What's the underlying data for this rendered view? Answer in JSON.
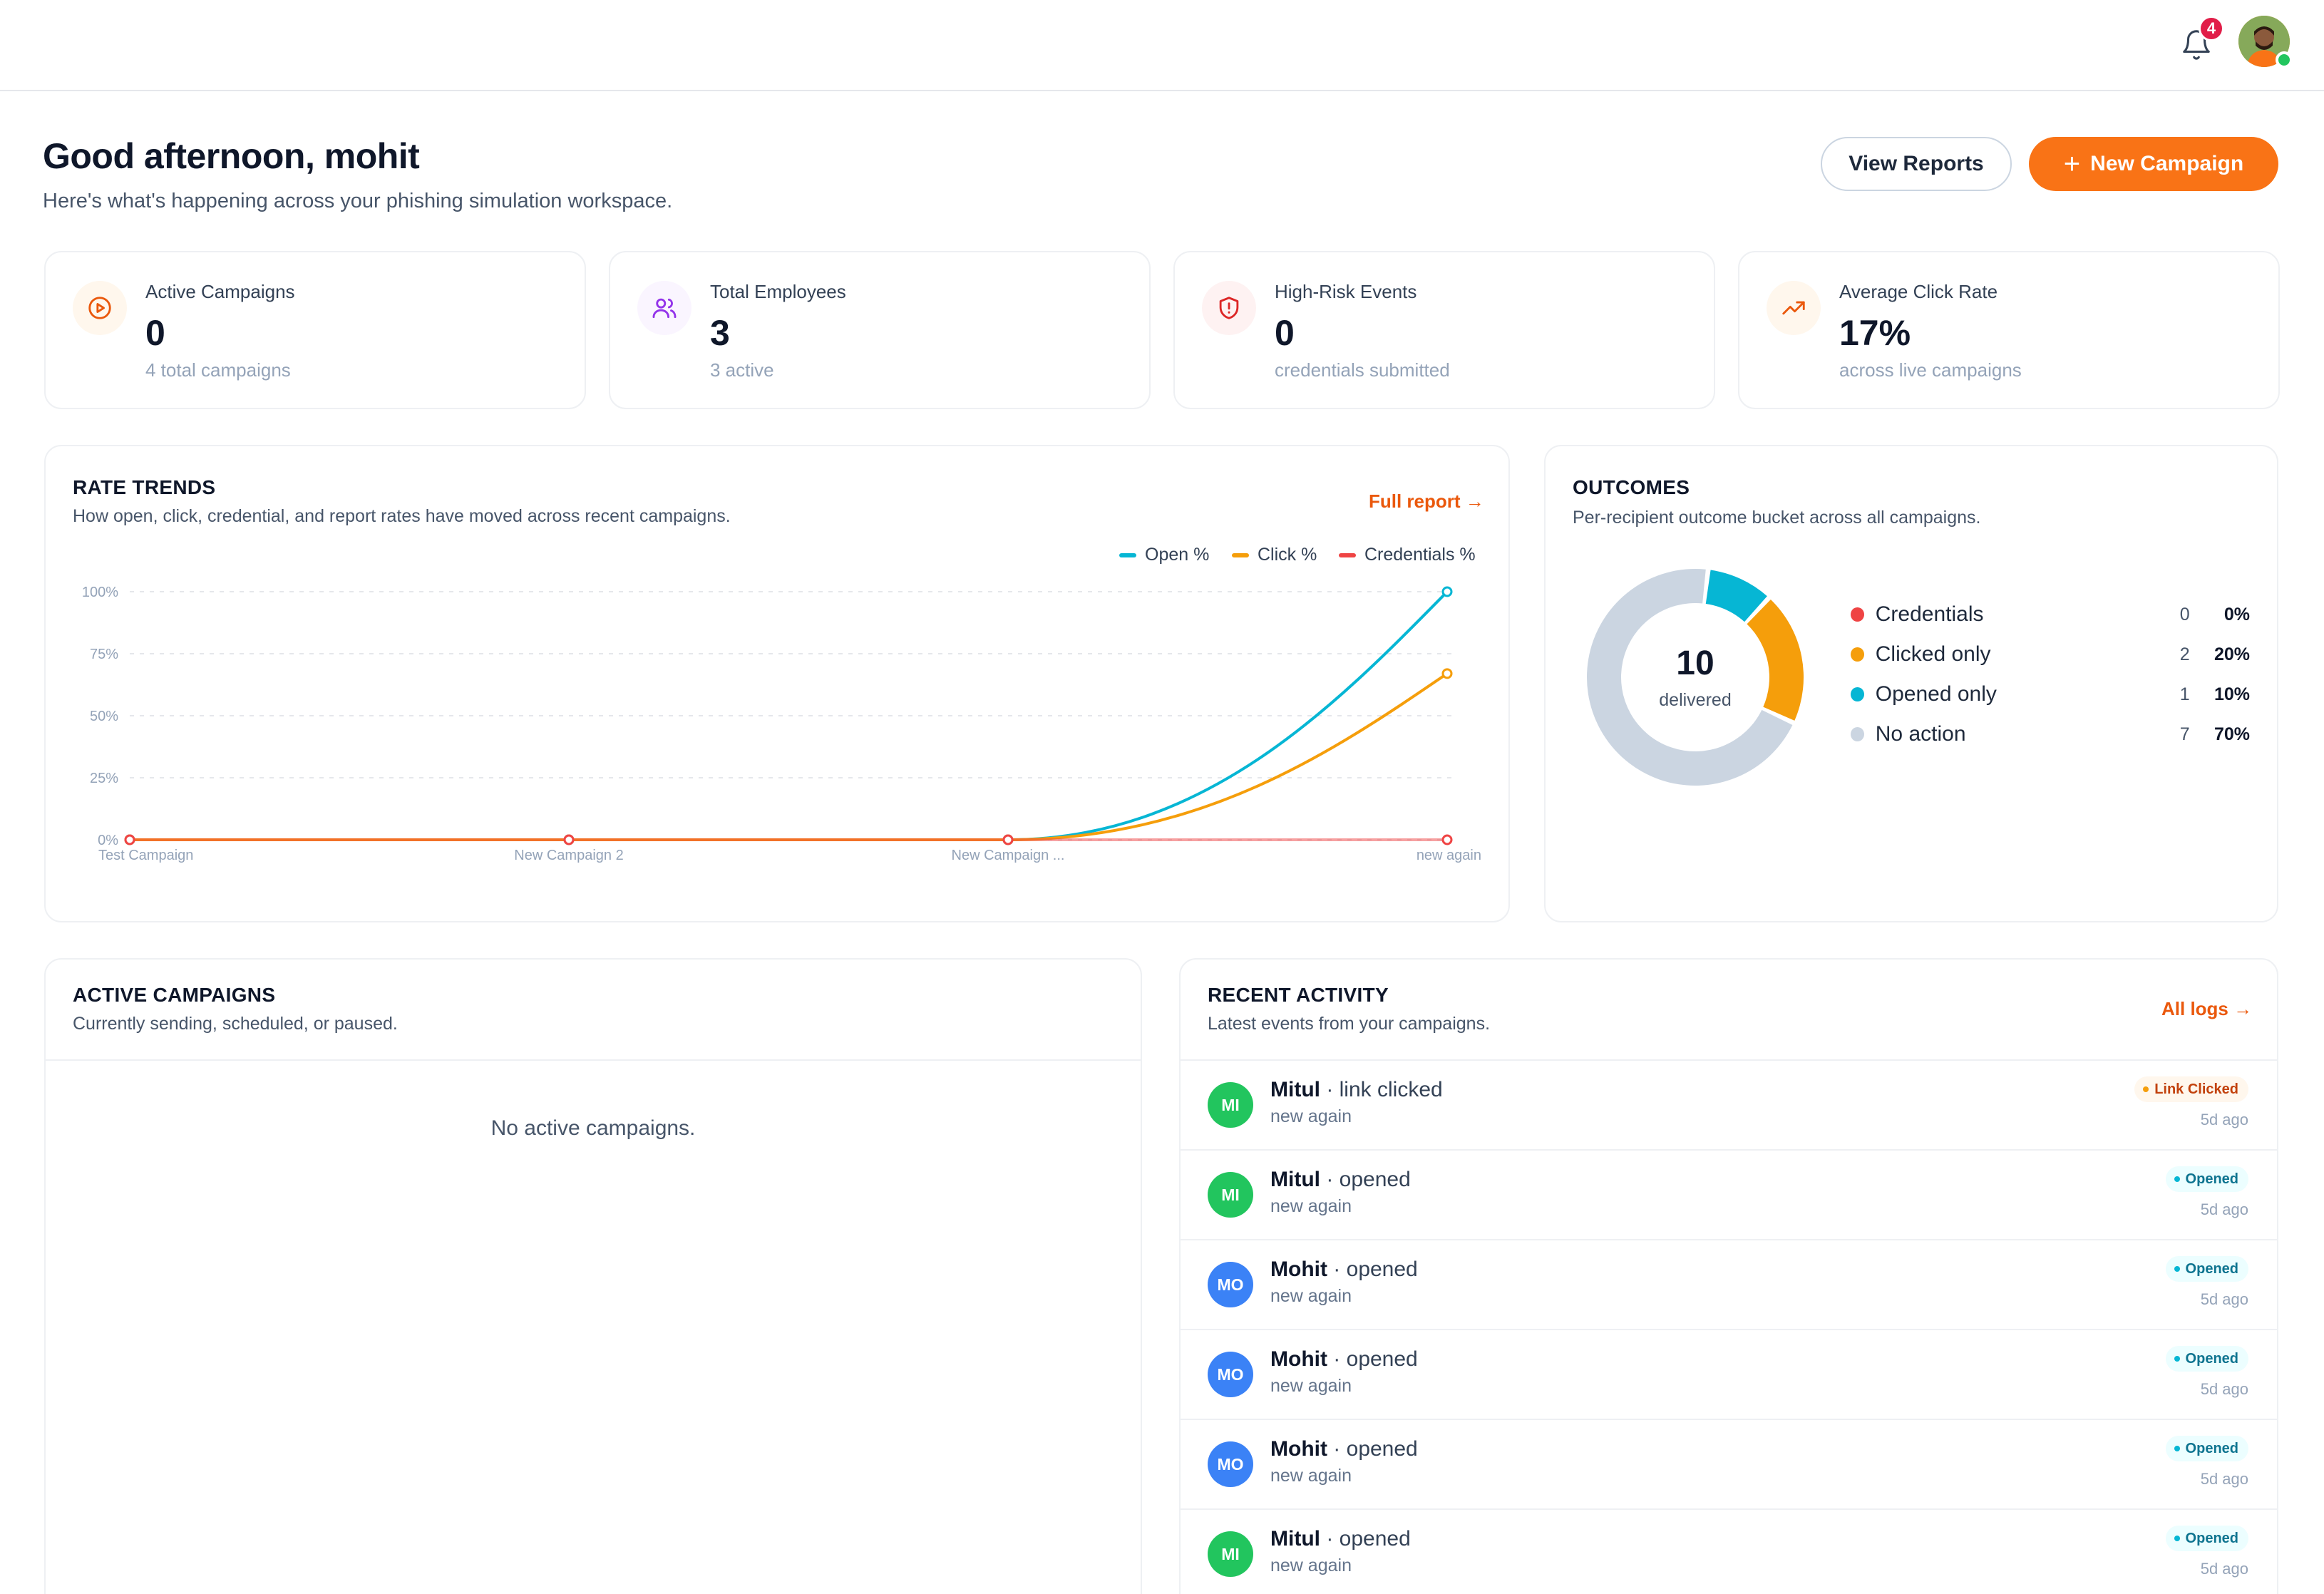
{
  "topbar": {
    "notification_count": "4"
  },
  "header": {
    "greeting": "Good afternoon, mohit",
    "subtitle": "Here's what's happening across your phishing simulation workspace.",
    "view_reports_label": "View Reports",
    "new_campaign_label": "New Campaign"
  },
  "stats": [
    {
      "label": "Active Campaigns",
      "value": "0",
      "sub": "4 total campaigns",
      "icon": "play-circle-icon",
      "accent": "#ea580c"
    },
    {
      "label": "Total Employees",
      "value": "3",
      "sub": "3 active",
      "icon": "users-icon",
      "accent": "#9333ea"
    },
    {
      "label": "High-Risk Events",
      "value": "0",
      "sub": "credentials submitted",
      "icon": "shield-alert-icon",
      "accent": "#dc2626"
    },
    {
      "label": "Average Click Rate",
      "value": "17%",
      "sub": "across live campaigns",
      "icon": "trending-up-icon",
      "accent": "#ea580c"
    }
  ],
  "rate_trends": {
    "title": "RATE TRENDS",
    "subtitle": "How open, click, credential, and report rates have moved across recent campaigns.",
    "link": "Full report →",
    "legend": [
      "Open %",
      "Click %",
      "Credentials %"
    ]
  },
  "chart_data": {
    "type": "line",
    "categories": [
      "Test Campaign",
      "New Campaign 2",
      "New Campaign ...",
      "new again"
    ],
    "y_ticks": [
      "0%",
      "25%",
      "50%",
      "75%",
      "100%"
    ],
    "ylim": [
      0,
      100
    ],
    "grid": true,
    "legend_position": "top-right",
    "series": [
      {
        "name": "Open %",
        "color": "#06b6d4",
        "values": [
          0,
          0,
          0,
          100
        ]
      },
      {
        "name": "Click %",
        "color": "#f59e0b",
        "values": [
          0,
          0,
          0,
          67
        ]
      },
      {
        "name": "Credentials %",
        "color": "#ef4444",
        "values": [
          0,
          0,
          0,
          0
        ]
      }
    ]
  },
  "outcomes": {
    "title": "OUTCOMES",
    "subtitle": "Per-recipient outcome bucket across all campaigns.",
    "total": "10",
    "total_label": "delivered",
    "items": [
      {
        "name": "Credentials",
        "count": "0",
        "pct": "0%",
        "value": 0,
        "color": "#ef4444"
      },
      {
        "name": "Clicked only",
        "count": "2",
        "pct": "20%",
        "value": 2,
        "color": "#f59e0b"
      },
      {
        "name": "Opened only",
        "count": "1",
        "pct": "10%",
        "value": 1,
        "color": "#06b6d4"
      },
      {
        "name": "No action",
        "count": "7",
        "pct": "70%",
        "value": 7,
        "color": "#cbd5e1"
      }
    ]
  },
  "active_campaigns": {
    "title": "ACTIVE CAMPAIGNS",
    "subtitle": "Currently sending, scheduled, or paused.",
    "empty": "No active campaigns."
  },
  "recent_activity": {
    "title": "RECENT ACTIVITY",
    "subtitle": "Latest events from your campaigns.",
    "link": "All logs →",
    "items": [
      {
        "initials": "MI",
        "who": "Mitul",
        "what": " · link clicked",
        "campaign": "new again",
        "badge": "Link Clicked",
        "badge_type": "click",
        "time": "5d ago",
        "avatar_color": "#22c55e"
      },
      {
        "initials": "MI",
        "who": "Mitul",
        "what": " · opened",
        "campaign": "new again",
        "badge": "Opened",
        "badge_type": "open",
        "time": "5d ago",
        "avatar_color": "#22c55e"
      },
      {
        "initials": "MO",
        "who": "Mohit",
        "what": " · opened",
        "campaign": "new again",
        "badge": "Opened",
        "badge_type": "open",
        "time": "5d ago",
        "avatar_color": "#3b82f6"
      },
      {
        "initials": "MO",
        "who": "Mohit",
        "what": " · opened",
        "campaign": "new again",
        "badge": "Opened",
        "badge_type": "open",
        "time": "5d ago",
        "avatar_color": "#3b82f6"
      },
      {
        "initials": "MO",
        "who": "Mohit",
        "what": " · opened",
        "campaign": "new again",
        "badge": "Opened",
        "badge_type": "open",
        "time": "5d ago",
        "avatar_color": "#3b82f6"
      },
      {
        "initials": "MI",
        "who": "Mitul",
        "what": " · opened",
        "campaign": "new again",
        "badge": "Opened",
        "badge_type": "open",
        "time": "5d ago",
        "avatar_color": "#22c55e"
      }
    ]
  }
}
